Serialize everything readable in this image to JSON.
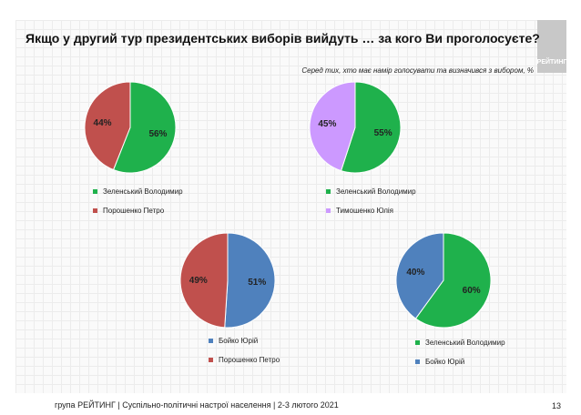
{
  "title": "Якщо у другий тур президентських виборів вийдуть … за кого Ви проголосуєте?",
  "subtitle": "Серед тих, хто має намір голосувати  та визначився з вибором, %",
  "logo_text": "РЕЙТИНГ",
  "footer": "група РЕЙТИНГ | Суспільно-політичні настрої населення  | 2-3 лютого 2021",
  "page_number": "13",
  "colors": {
    "zelensky": "#1fb14c",
    "poroshenko": "#c0504d",
    "tymoshenko": "#cc99ff",
    "boyko": "#4f81bd"
  },
  "chart_data": [
    {
      "type": "pie",
      "slices": [
        {
          "name": "Зеленський Володимир",
          "value": 56,
          "label": "56%",
          "color": "#1fb14c"
        },
        {
          "name": "Порошенко Петро",
          "value": 44,
          "label": "44%",
          "color": "#c0504d"
        }
      ],
      "legend": "bottom"
    },
    {
      "type": "pie",
      "slices": [
        {
          "name": "Зеленський Володимир",
          "value": 55,
          "label": "55%",
          "color": "#1fb14c"
        },
        {
          "name": "Тимошенко Юлія",
          "value": 45,
          "label": "45%",
          "color": "#cc99ff"
        }
      ],
      "legend": "bottom"
    },
    {
      "type": "pie",
      "slices": [
        {
          "name": "Бойко Юрій",
          "value": 51,
          "label": "51%",
          "color": "#4f81bd"
        },
        {
          "name": "Порошенко Петро",
          "value": 49,
          "label": "49%",
          "color": "#c0504d"
        }
      ],
      "legend": "bottom"
    },
    {
      "type": "pie",
      "slices": [
        {
          "name": "Зеленський Володимир",
          "value": 60,
          "label": "60%",
          "color": "#1fb14c"
        },
        {
          "name": "Бойко Юрій",
          "value": 40,
          "label": "40%",
          "color": "#4f81bd"
        }
      ],
      "legend": "bottom"
    }
  ]
}
